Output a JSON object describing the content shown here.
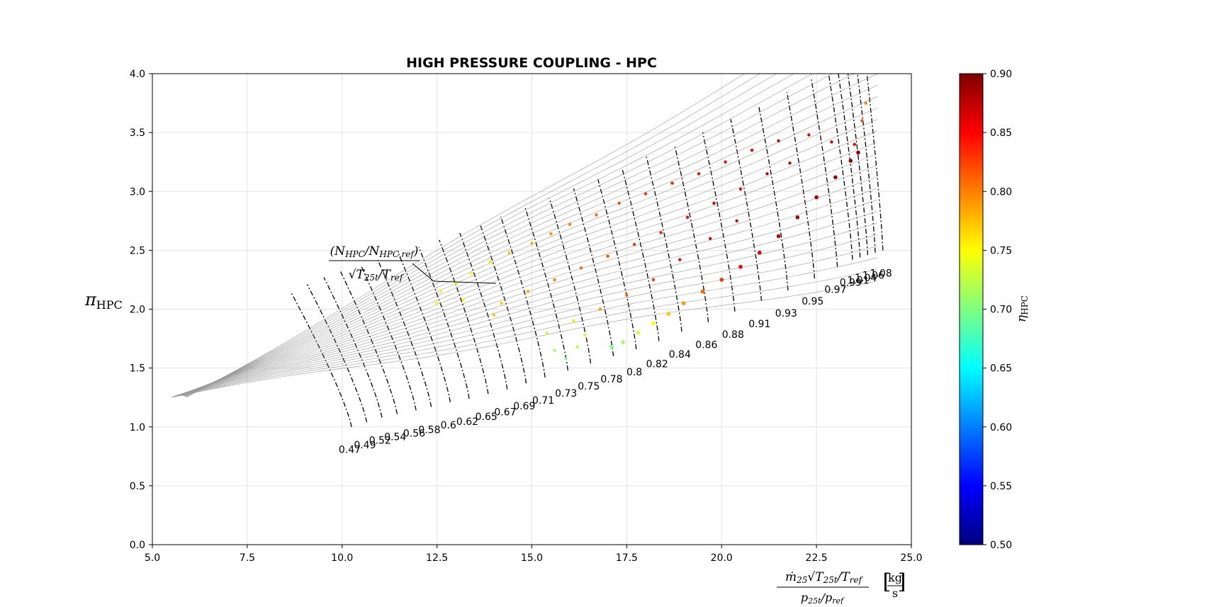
{
  "chart_data": {
    "type": "scatter",
    "title": "HIGH PRESSURE COUPLING - HPC",
    "xlabel": "ṁ25 √(T25t/Tref) / (p25t/pref) [kg/s]",
    "ylabel": "πHPC",
    "xlim": [
      5.0,
      25.0
    ],
    "ylim": [
      0.0,
      4.0
    ],
    "x_ticks": [
      "5.0",
      "7.5",
      "10.0",
      "12.5",
      "15.0",
      "17.5",
      "20.0",
      "22.5",
      "25.0"
    ],
    "y_ticks": [
      "0.0",
      "0.5",
      "1.0",
      "1.5",
      "2.0",
      "2.5",
      "3.0",
      "3.5",
      "4.0"
    ],
    "grid": true,
    "speed_line_annotation": "(NHPC/NHPC,ref) / √(T25t/Tref)",
    "speed_labels": [
      "0.47",
      "0.49",
      "0.52",
      "0.54",
      "0.56",
      "0.58",
      "0.6",
      "0.62",
      "0.65",
      "0.67",
      "0.69",
      "0.71",
      "0.73",
      "0.75",
      "0.78",
      "0.8",
      "0.82",
      "0.84",
      "0.86",
      "0.88",
      "0.91",
      "0.93",
      "0.95",
      "0.97",
      "0.99",
      "1.01",
      "1.04",
      "1.06",
      "1.08"
    ],
    "speed_label_points": [
      {
        "x": 10.2,
        "y": 0.85
      },
      {
        "x": 10.6,
        "y": 0.89
      },
      {
        "x": 11.0,
        "y": 0.93
      },
      {
        "x": 11.4,
        "y": 0.96
      },
      {
        "x": 11.9,
        "y": 0.99
      },
      {
        "x": 12.3,
        "y": 1.02
      },
      {
        "x": 12.8,
        "y": 1.06
      },
      {
        "x": 13.3,
        "y": 1.09
      },
      {
        "x": 13.8,
        "y": 1.13
      },
      {
        "x": 14.3,
        "y": 1.17
      },
      {
        "x": 14.8,
        "y": 1.22
      },
      {
        "x": 15.3,
        "y": 1.27
      },
      {
        "x": 15.9,
        "y": 1.33
      },
      {
        "x": 16.5,
        "y": 1.39
      },
      {
        "x": 17.1,
        "y": 1.45
      },
      {
        "x": 17.7,
        "y": 1.51
      },
      {
        "x": 18.3,
        "y": 1.58
      },
      {
        "x": 18.9,
        "y": 1.66
      },
      {
        "x": 19.6,
        "y": 1.74
      },
      {
        "x": 20.3,
        "y": 1.83
      },
      {
        "x": 21.0,
        "y": 1.92
      },
      {
        "x": 21.7,
        "y": 2.01
      },
      {
        "x": 22.4,
        "y": 2.11
      },
      {
        "x": 23.0,
        "y": 2.21
      },
      {
        "x": 23.4,
        "y": 2.27
      },
      {
        "x": 23.6,
        "y": 2.29
      },
      {
        "x": 23.8,
        "y": 2.31
      },
      {
        "x": 24.0,
        "y": 2.33
      },
      {
        "x": 24.2,
        "y": 2.35
      }
    ],
    "colorbar": {
      "label": "ηHPC",
      "range": [
        0.5,
        0.9
      ],
      "ticks": [
        "0.50",
        "0.55",
        "0.60",
        "0.65",
        "0.70",
        "0.75",
        "0.80",
        "0.85",
        "0.90"
      ],
      "colormap": [
        "#00007f",
        "#0000ff",
        "#007fff",
        "#00ffff",
        "#7fff7f",
        "#ffff00",
        "#ff7f00",
        "#ff0000",
        "#7f0000"
      ]
    },
    "series": [
      {
        "kind": "operating-line",
        "points": [
          {
            "x": 17.1,
            "y": 1.68,
            "eta": 0.7
          },
          {
            "x": 17.4,
            "y": 1.72,
            "eta": 0.71
          },
          {
            "x": 17.8,
            "y": 1.8,
            "eta": 0.73
          },
          {
            "x": 18.2,
            "y": 1.88,
            "eta": 0.75
          },
          {
            "x": 18.6,
            "y": 1.96,
            "eta": 0.77
          },
          {
            "x": 19.0,
            "y": 2.05,
            "eta": 0.79
          },
          {
            "x": 19.5,
            "y": 2.15,
            "eta": 0.81
          },
          {
            "x": 20.0,
            "y": 2.25,
            "eta": 0.83
          },
          {
            "x": 20.5,
            "y": 2.36,
            "eta": 0.85
          },
          {
            "x": 21.0,
            "y": 2.48,
            "eta": 0.86
          },
          {
            "x": 21.5,
            "y": 2.62,
            "eta": 0.87
          },
          {
            "x": 22.0,
            "y": 2.78,
            "eta": 0.88
          },
          {
            "x": 22.5,
            "y": 2.95,
            "eta": 0.88
          },
          {
            "x": 23.0,
            "y": 3.12,
            "eta": 0.89
          },
          {
            "x": 23.4,
            "y": 3.26,
            "eta": 0.89
          },
          {
            "x": 23.6,
            "y": 3.33,
            "eta": 0.89
          }
        ]
      },
      {
        "kind": "map-points",
        "points": [
          {
            "x": 12.6,
            "y": 2.15,
            "eta": 0.74
          },
          {
            "x": 13.0,
            "y": 2.22,
            "eta": 0.74
          },
          {
            "x": 13.4,
            "y": 2.3,
            "eta": 0.75
          },
          {
            "x": 13.9,
            "y": 2.4,
            "eta": 0.76
          },
          {
            "x": 14.4,
            "y": 2.48,
            "eta": 0.77
          },
          {
            "x": 15.0,
            "y": 2.56,
            "eta": 0.78
          },
          {
            "x": 15.5,
            "y": 2.64,
            "eta": 0.79
          },
          {
            "x": 16.0,
            "y": 2.72,
            "eta": 0.8
          },
          {
            "x": 16.7,
            "y": 2.8,
            "eta": 0.81
          },
          {
            "x": 17.3,
            "y": 2.9,
            "eta": 0.82
          },
          {
            "x": 18.0,
            "y": 2.98,
            "eta": 0.83
          },
          {
            "x": 18.7,
            "y": 3.07,
            "eta": 0.84
          },
          {
            "x": 19.4,
            "y": 3.15,
            "eta": 0.85
          },
          {
            "x": 20.1,
            "y": 3.25,
            "eta": 0.85
          },
          {
            "x": 20.8,
            "y": 3.35,
            "eta": 0.86
          },
          {
            "x": 21.5,
            "y": 3.43,
            "eta": 0.86
          },
          {
            "x": 22.3,
            "y": 3.48,
            "eta": 0.86
          },
          {
            "x": 22.9,
            "y": 3.42,
            "eta": 0.87
          },
          {
            "x": 23.5,
            "y": 3.4,
            "eta": 0.86
          },
          {
            "x": 23.7,
            "y": 3.6,
            "eta": 0.82
          },
          {
            "x": 23.8,
            "y": 3.75,
            "eta": 0.8
          },
          {
            "x": 14.2,
            "y": 2.05,
            "eta": 0.77
          },
          {
            "x": 14.9,
            "y": 2.15,
            "eta": 0.78
          },
          {
            "x": 15.6,
            "y": 2.25,
            "eta": 0.8
          },
          {
            "x": 16.3,
            "y": 2.35,
            "eta": 0.81
          },
          {
            "x": 17.0,
            "y": 2.45,
            "eta": 0.82
          },
          {
            "x": 17.7,
            "y": 2.55,
            "eta": 0.83
          },
          {
            "x": 18.4,
            "y": 2.65,
            "eta": 0.84
          },
          {
            "x": 19.1,
            "y": 2.78,
            "eta": 0.85
          },
          {
            "x": 19.8,
            "y": 2.9,
            "eta": 0.86
          },
          {
            "x": 20.5,
            "y": 3.02,
            "eta": 0.86
          },
          {
            "x": 21.2,
            "y": 3.15,
            "eta": 0.87
          },
          {
            "x": 21.8,
            "y": 3.24,
            "eta": 0.87
          },
          {
            "x": 15.4,
            "y": 1.8,
            "eta": 0.73
          },
          {
            "x": 15.6,
            "y": 1.65,
            "eta": 0.71
          },
          {
            "x": 15.9,
            "y": 1.58,
            "eta": 0.7
          },
          {
            "x": 16.2,
            "y": 1.68,
            "eta": 0.72
          },
          {
            "x": 16.4,
            "y": 1.78,
            "eta": 0.73
          },
          {
            "x": 16.1,
            "y": 1.9,
            "eta": 0.76
          },
          {
            "x": 16.8,
            "y": 2.0,
            "eta": 0.79
          },
          {
            "x": 17.5,
            "y": 2.12,
            "eta": 0.81
          },
          {
            "x": 18.2,
            "y": 2.25,
            "eta": 0.83
          },
          {
            "x": 18.9,
            "y": 2.42,
            "eta": 0.85
          },
          {
            "x": 19.7,
            "y": 2.6,
            "eta": 0.86
          },
          {
            "x": 20.4,
            "y": 2.75,
            "eta": 0.86
          },
          {
            "x": 14.0,
            "y": 1.95,
            "eta": 0.77
          },
          {
            "x": 13.2,
            "y": 2.08,
            "eta": 0.75
          },
          {
            "x": 12.5,
            "y": 2.05,
            "eta": 0.74
          }
        ]
      }
    ]
  }
}
